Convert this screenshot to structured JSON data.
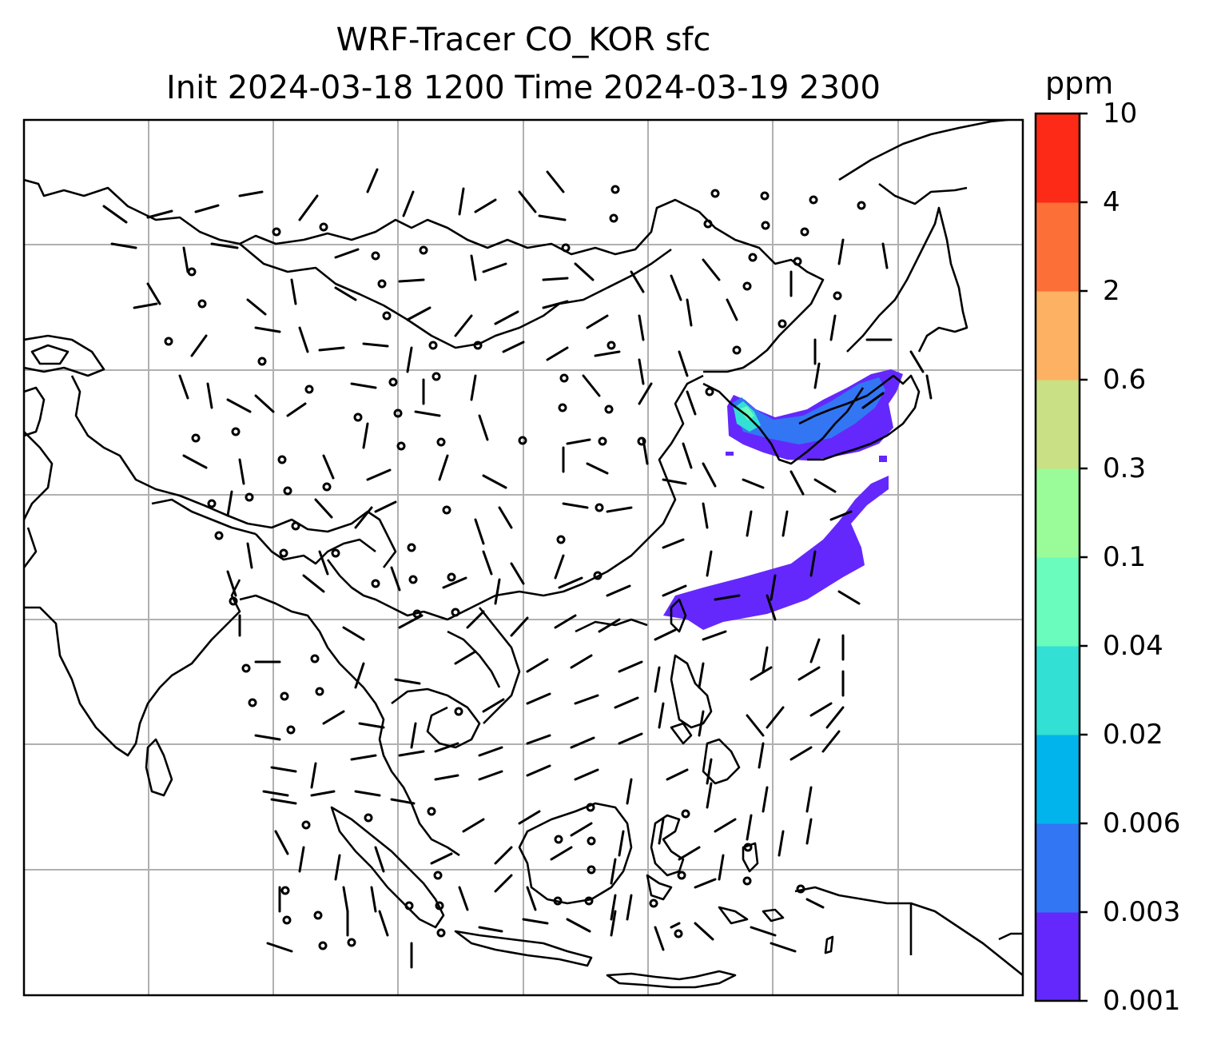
{
  "title_line1": "WRF-Tracer CO_KOR sfc",
  "title_line2": "Init 2024-03-18 1200 Time 2024-03-19 2300",
  "colorbar": {
    "unit": "ppm",
    "levels": [
      "0.001",
      "0.003",
      "0.006",
      "0.02",
      "0.04",
      "0.1",
      "0.3",
      "0.6",
      "2",
      "4",
      "10"
    ],
    "colors": [
      "#6428fc",
      "#3276f4",
      "#02b4ec",
      "#32e0d4",
      "#6afcbc",
      "#9afc98",
      "#cae084",
      "#fcb262",
      "#fc7038",
      "#fc2a16"
    ]
  },
  "map": {
    "gridlines": true,
    "features": [
      "coastlines",
      "country-borders",
      "wind-barbs",
      "co-tracer-plume"
    ]
  }
}
